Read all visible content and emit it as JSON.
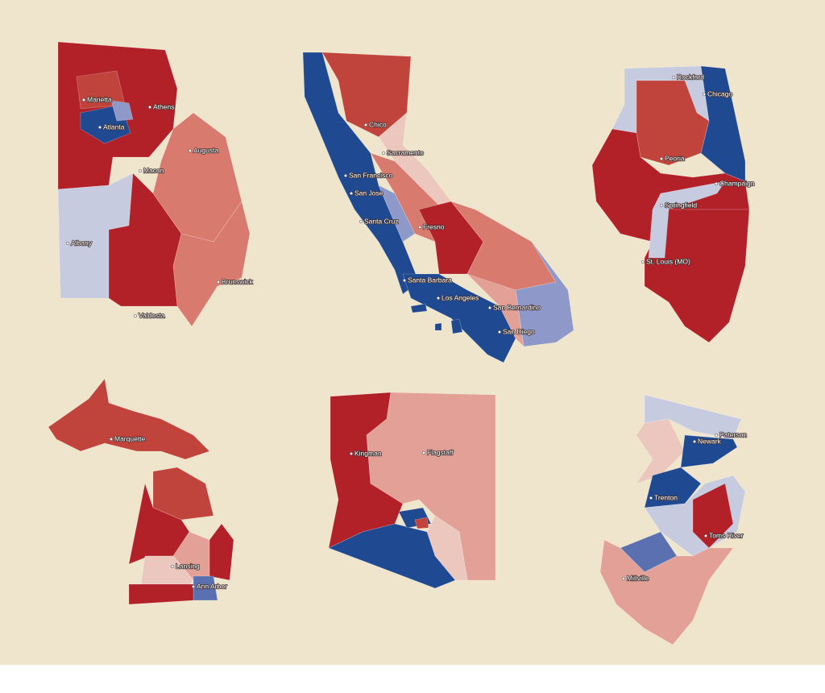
{
  "maps": [
    {
      "labels": [
        "Marietta",
        "Athens",
        "Atlanta",
        "Augusta",
        "Macon",
        "Albany",
        "Valdosta",
        "Brunswick"
      ]
    },
    {
      "labels": [
        "Chico",
        "Sacramento",
        "San Francisco",
        "San Jose",
        "Santa Cruz",
        "Fresno",
        "Santa Barbara",
        "Los Angeles",
        "San Bernardino",
        "San Diego"
      ]
    },
    {
      "labels": [
        "Rockford",
        "Chicago",
        "Peoria",
        "Champaign",
        "Springfield",
        "St. Louis (MO)"
      ]
    },
    {
      "labels": [
        "Marquette",
        "Lansing",
        "Ann Arbor"
      ]
    },
    {
      "labels": [
        "Kingman",
        "Flagstaff"
      ]
    },
    {
      "labels": [
        "Paterson",
        "Newark",
        "Trenton",
        "Toms River",
        "Millville"
      ]
    }
  ]
}
